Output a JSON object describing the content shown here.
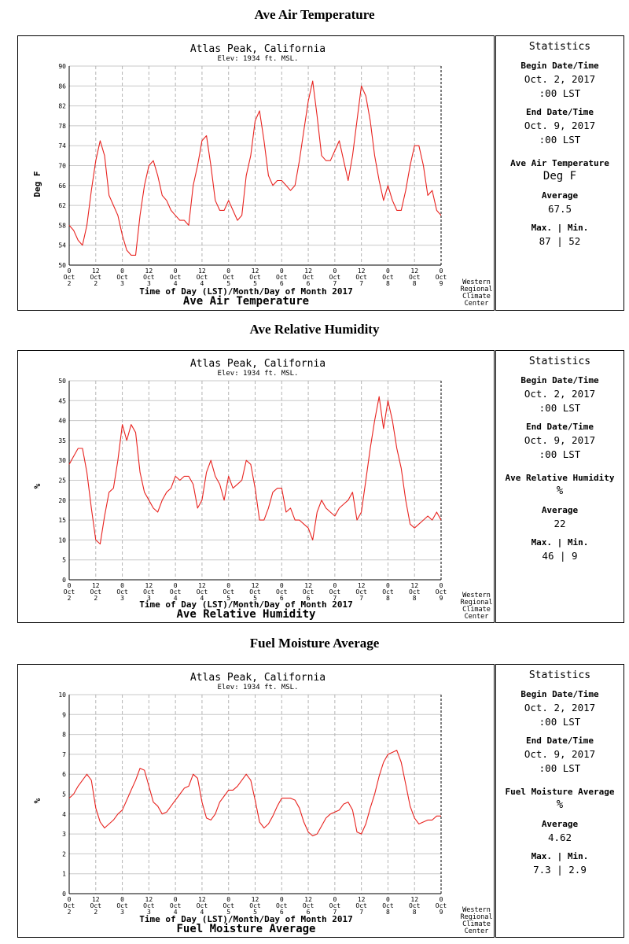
{
  "charts": [
    {
      "section_title": "Ave Air Temperature",
      "station": "Atlas Peak, California",
      "elev": "Elev: 1934 ft. MSL.",
      "ylabel": "Deg F",
      "xlabel": "Time of Day (LST)/Month/Day of Month 2017",
      "subtitle": "Ave Air Temperature",
      "credit": [
        "Western",
        "Regional",
        "Climate",
        "Center"
      ],
      "stats": {
        "heading": "Statistics",
        "begin_label": "Begin Date/Time",
        "begin_date": "Oct. 2, 2017",
        "begin_time": ":00 LST",
        "end_label": "End Date/Time",
        "end_date": "Oct. 9, 2017",
        "end_time": ":00 LST",
        "var_label": "Ave Air Temperature",
        "unit": "Deg F",
        "avg_label": "Average",
        "avg": "67.5",
        "maxmin_label": "Max. | Min.",
        "maxmin": "87 | 52"
      }
    },
    {
      "section_title": "Ave Relative Humidity",
      "station": "Atlas Peak, California",
      "elev": "Elev: 1934 ft. MSL.",
      "ylabel": "%",
      "xlabel": "Time of Day (LST)/Month/Day of Month 2017",
      "subtitle": "Ave Relative Humidity",
      "credit": [
        "Western",
        "Regional",
        "Climate",
        "Center"
      ],
      "stats": {
        "heading": "Statistics",
        "begin_label": "Begin Date/Time",
        "begin_date": "Oct. 2, 2017",
        "begin_time": ":00 LST",
        "end_label": "End Date/Time",
        "end_date": "Oct. 9, 2017",
        "end_time": ":00 LST",
        "var_label": "Ave Relative Humidity",
        "unit": "%",
        "avg_label": "Average",
        "avg": "22",
        "maxmin_label": "Max. | Min.",
        "maxmin": "46 | 9"
      }
    },
    {
      "section_title": "Fuel Moisture Average",
      "station": "Atlas Peak, California",
      "elev": "Elev: 1934 ft. MSL.",
      "ylabel": "%",
      "xlabel": "Time of Day (LST)/Month/Day of Month 2017",
      "subtitle": "Fuel Moisture Average",
      "credit": [
        "Western",
        "Regional",
        "Climate",
        "Center"
      ],
      "stats": {
        "heading": "Statistics",
        "begin_label": "Begin Date/Time",
        "begin_date": "Oct. 2, 2017",
        "begin_time": ":00 LST",
        "end_label": "End Date/Time",
        "end_date": "Oct. 9, 2017",
        "end_time": ":00 LST",
        "var_label": "Fuel Moisture Average",
        "unit": "%",
        "avg_label": "Average",
        "avg": "4.62",
        "maxmin_label": "Max. | Min.",
        "maxmin": "7.3 | 2.9"
      }
    }
  ],
  "chart_data": [
    {
      "type": "line",
      "title": "Ave Air Temperature",
      "xlabel": "Time of Day (LST)/Month/Day of Month 2017",
      "ylabel": "Deg F",
      "ylim": [
        50,
        90
      ],
      "yticks": [
        50,
        54,
        58,
        62,
        66,
        70,
        74,
        78,
        82,
        86,
        90
      ],
      "xlim": [
        "Oct 2 00:00",
        "Oct 9 00:00"
      ],
      "xticks": [
        {
          "hour": "0",
          "mon": "Oct",
          "day": "2"
        },
        {
          "hour": "12",
          "mon": "Oct",
          "day": "2"
        },
        {
          "hour": "0",
          "mon": "Oct",
          "day": "3"
        },
        {
          "hour": "12",
          "mon": "Oct",
          "day": "3"
        },
        {
          "hour": "0",
          "mon": "Oct",
          "day": "4"
        },
        {
          "hour": "12",
          "mon": "Oct",
          "day": "4"
        },
        {
          "hour": "0",
          "mon": "Oct",
          "day": "5"
        },
        {
          "hour": "12",
          "mon": "Oct",
          "day": "5"
        },
        {
          "hour": "0",
          "mon": "Oct",
          "day": "6"
        },
        {
          "hour": "12",
          "mon": "Oct",
          "day": "6"
        },
        {
          "hour": "0",
          "mon": "Oct",
          "day": "7"
        },
        {
          "hour": "12",
          "mon": "Oct",
          "day": "7"
        },
        {
          "hour": "0",
          "mon": "Oct",
          "day": "8"
        },
        {
          "hour": "12",
          "mon": "Oct",
          "day": "8"
        },
        {
          "hour": "0",
          "mon": "Oct",
          "day": "9"
        }
      ],
      "grid": true,
      "line_color": "#e8231f",
      "series": [
        {
          "x": [
            "Oct 2 00:00",
            "Oct 2 02:00",
            "Oct 2 04:00",
            "Oct 2 06:00",
            "Oct 2 08:00",
            "Oct 2 10:00",
            "Oct 2 12:00",
            "Oct 2 14:00",
            "Oct 2 16:00",
            "Oct 2 18:00",
            "Oct 2 20:00",
            "Oct 2 22:00",
            "Oct 3 00:00",
            "Oct 3 02:00",
            "Oct 3 04:00",
            "Oct 3 06:00",
            "Oct 3 08:00",
            "Oct 3 10:00",
            "Oct 3 12:00",
            "Oct 3 14:00",
            "Oct 3 16:00",
            "Oct 3 18:00",
            "Oct 3 20:00",
            "Oct 3 22:00",
            "Oct 4 00:00",
            "Oct 4 02:00",
            "Oct 4 04:00",
            "Oct 4 06:00",
            "Oct 4 08:00",
            "Oct 4 10:00",
            "Oct 4 12:00",
            "Oct 4 14:00",
            "Oct 4 16:00",
            "Oct 4 18:00",
            "Oct 4 20:00",
            "Oct 4 22:00",
            "Oct 5 00:00",
            "Oct 5 02:00",
            "Oct 5 04:00",
            "Oct 5 06:00",
            "Oct 5 08:00",
            "Oct 5 10:00",
            "Oct 5 12:00",
            "Oct 5 14:00",
            "Oct 5 16:00",
            "Oct 5 18:00",
            "Oct 5 20:00",
            "Oct 5 22:00",
            "Oct 6 00:00",
            "Oct 6 02:00",
            "Oct 6 04:00",
            "Oct 6 06:00",
            "Oct 6 08:00",
            "Oct 6 10:00",
            "Oct 6 12:00",
            "Oct 6 14:00",
            "Oct 6 16:00",
            "Oct 6 18:00",
            "Oct 6 20:00",
            "Oct 6 22:00",
            "Oct 7 00:00",
            "Oct 7 02:00",
            "Oct 7 04:00",
            "Oct 7 06:00",
            "Oct 7 08:00",
            "Oct 7 10:00",
            "Oct 7 12:00",
            "Oct 7 14:00",
            "Oct 7 16:00",
            "Oct 7 18:00",
            "Oct 7 20:00",
            "Oct 7 22:00",
            "Oct 8 00:00",
            "Oct 8 02:00",
            "Oct 8 04:00",
            "Oct 8 06:00",
            "Oct 8 08:00",
            "Oct 8 10:00",
            "Oct 8 12:00",
            "Oct 8 14:00",
            "Oct 8 16:00",
            "Oct 8 18:00",
            "Oct 8 20:00",
            "Oct 8 22:00",
            "Oct 9 00:00"
          ],
          "y": [
            58,
            57,
            55,
            54,
            58,
            65,
            71,
            75,
            72,
            64,
            62,
            60,
            56,
            53,
            52,
            52,
            60,
            66,
            70,
            71,
            68,
            64,
            63,
            61,
            60,
            59,
            59,
            58,
            66,
            70,
            75,
            76,
            70,
            63,
            61,
            61,
            63,
            61,
            59,
            60,
            68,
            72,
            79,
            81,
            75,
            68,
            66,
            67,
            67,
            66,
            65,
            66,
            71,
            77,
            83,
            87,
            80,
            72,
            71,
            71,
            73,
            75,
            71,
            67,
            72,
            79,
            86,
            84,
            79,
            72,
            67,
            63,
            66,
            63,
            61,
            61,
            65,
            70,
            74,
            74,
            70,
            64,
            65,
            61,
            60
          ]
        }
      ]
    },
    {
      "type": "line",
      "title": "Ave Relative Humidity",
      "xlabel": "Time of Day (LST)/Month/Day of Month 2017",
      "ylabel": "%",
      "ylim": [
        0,
        50
      ],
      "yticks": [
        0,
        5,
        10,
        15,
        20,
        25,
        30,
        35,
        40,
        45,
        50
      ],
      "xlim": [
        "Oct 2 00:00",
        "Oct 9 00:00"
      ],
      "xticks": [
        {
          "hour": "0",
          "mon": "Oct",
          "day": "2"
        },
        {
          "hour": "12",
          "mon": "Oct",
          "day": "2"
        },
        {
          "hour": "0",
          "mon": "Oct",
          "day": "3"
        },
        {
          "hour": "12",
          "mon": "Oct",
          "day": "3"
        },
        {
          "hour": "0",
          "mon": "Oct",
          "day": "4"
        },
        {
          "hour": "12",
          "mon": "Oct",
          "day": "4"
        },
        {
          "hour": "0",
          "mon": "Oct",
          "day": "5"
        },
        {
          "hour": "12",
          "mon": "Oct",
          "day": "5"
        },
        {
          "hour": "0",
          "mon": "Oct",
          "day": "6"
        },
        {
          "hour": "12",
          "mon": "Oct",
          "day": "6"
        },
        {
          "hour": "0",
          "mon": "Oct",
          "day": "7"
        },
        {
          "hour": "12",
          "mon": "Oct",
          "day": "7"
        },
        {
          "hour": "0",
          "mon": "Oct",
          "day": "8"
        },
        {
          "hour": "12",
          "mon": "Oct",
          "day": "8"
        },
        {
          "hour": "0",
          "mon": "Oct",
          "day": "9"
        }
      ],
      "grid": true,
      "line_color": "#e8231f",
      "series": [
        {
          "x": [
            "Oct 2 00:00",
            "Oct 2 02:00",
            "Oct 2 04:00",
            "Oct 2 06:00",
            "Oct 2 08:00",
            "Oct 2 10:00",
            "Oct 2 12:00",
            "Oct 2 14:00",
            "Oct 2 16:00",
            "Oct 2 18:00",
            "Oct 2 20:00",
            "Oct 2 22:00",
            "Oct 3 00:00",
            "Oct 3 02:00",
            "Oct 3 04:00",
            "Oct 3 06:00",
            "Oct 3 08:00",
            "Oct 3 10:00",
            "Oct 3 12:00",
            "Oct 3 14:00",
            "Oct 3 16:00",
            "Oct 3 18:00",
            "Oct 3 20:00",
            "Oct 3 22:00",
            "Oct 4 00:00",
            "Oct 4 02:00",
            "Oct 4 04:00",
            "Oct 4 06:00",
            "Oct 4 08:00",
            "Oct 4 10:00",
            "Oct 4 12:00",
            "Oct 4 14:00",
            "Oct 4 16:00",
            "Oct 4 18:00",
            "Oct 4 20:00",
            "Oct 4 22:00",
            "Oct 5 00:00",
            "Oct 5 02:00",
            "Oct 5 04:00",
            "Oct 5 06:00",
            "Oct 5 08:00",
            "Oct 5 10:00",
            "Oct 5 12:00",
            "Oct 5 14:00",
            "Oct 5 16:00",
            "Oct 5 18:00",
            "Oct 5 20:00",
            "Oct 5 22:00",
            "Oct 6 00:00",
            "Oct 6 02:00",
            "Oct 6 04:00",
            "Oct 6 06:00",
            "Oct 6 08:00",
            "Oct 6 10:00",
            "Oct 6 12:00",
            "Oct 6 14:00",
            "Oct 6 16:00",
            "Oct 6 18:00",
            "Oct 6 20:00",
            "Oct 6 22:00",
            "Oct 7 00:00",
            "Oct 7 02:00",
            "Oct 7 04:00",
            "Oct 7 06:00",
            "Oct 7 08:00",
            "Oct 7 10:00",
            "Oct 7 12:00",
            "Oct 7 14:00",
            "Oct 7 16:00",
            "Oct 7 18:00",
            "Oct 7 20:00",
            "Oct 7 22:00",
            "Oct 8 00:00",
            "Oct 8 02:00",
            "Oct 8 04:00",
            "Oct 8 06:00",
            "Oct 8 08:00",
            "Oct 8 10:00",
            "Oct 8 12:00",
            "Oct 8 14:00",
            "Oct 8 16:00",
            "Oct 8 18:00",
            "Oct 8 20:00",
            "Oct 8 22:00",
            "Oct 9 00:00"
          ],
          "y": [
            29,
            31,
            33,
            33,
            27,
            18,
            10,
            9,
            16,
            22,
            23,
            30,
            39,
            35,
            39,
            37,
            27,
            22,
            20,
            18,
            17,
            20,
            22,
            23,
            26,
            25,
            26,
            26,
            24,
            18,
            20,
            27,
            30,
            26,
            24,
            20,
            26,
            23,
            24,
            25,
            30,
            29,
            23,
            15,
            15,
            18,
            22,
            23,
            23,
            17,
            18,
            15,
            15,
            14,
            13,
            10,
            17,
            20,
            18,
            17,
            16,
            18,
            19,
            20,
            22,
            15,
            17,
            25,
            33,
            40,
            46,
            38,
            45,
            40,
            33,
            28,
            20,
            14,
            13,
            14,
            15,
            16,
            15,
            17,
            15
          ]
        }
      ]
    },
    {
      "type": "line",
      "title": "Fuel Moisture Average",
      "xlabel": "Time of Day (LST)/Month/Day of Month 2017",
      "ylabel": "%",
      "ylim": [
        0,
        10
      ],
      "yticks": [
        0,
        1,
        2,
        3,
        4,
        5,
        6,
        7,
        8,
        9,
        10
      ],
      "xlim": [
        "Oct 2 00:00",
        "Oct 9 00:00"
      ],
      "xticks": [
        {
          "hour": "0",
          "mon": "Oct",
          "day": "2"
        },
        {
          "hour": "12",
          "mon": "Oct",
          "day": "2"
        },
        {
          "hour": "0",
          "mon": "Oct",
          "day": "3"
        },
        {
          "hour": "12",
          "mon": "Oct",
          "day": "3"
        },
        {
          "hour": "0",
          "mon": "Oct",
          "day": "4"
        },
        {
          "hour": "12",
          "mon": "Oct",
          "day": "4"
        },
        {
          "hour": "0",
          "mon": "Oct",
          "day": "5"
        },
        {
          "hour": "12",
          "mon": "Oct",
          "day": "5"
        },
        {
          "hour": "0",
          "mon": "Oct",
          "day": "6"
        },
        {
          "hour": "12",
          "mon": "Oct",
          "day": "6"
        },
        {
          "hour": "0",
          "mon": "Oct",
          "day": "7"
        },
        {
          "hour": "12",
          "mon": "Oct",
          "day": "7"
        },
        {
          "hour": "0",
          "mon": "Oct",
          "day": "8"
        },
        {
          "hour": "12",
          "mon": "Oct",
          "day": "8"
        },
        {
          "hour": "0",
          "mon": "Oct",
          "day": "9"
        }
      ],
      "grid": true,
      "line_color": "#e8231f",
      "series": [
        {
          "x": [
            "Oct 2 00:00",
            "Oct 2 02:00",
            "Oct 2 04:00",
            "Oct 2 06:00",
            "Oct 2 08:00",
            "Oct 2 10:00",
            "Oct 2 12:00",
            "Oct 2 14:00",
            "Oct 2 16:00",
            "Oct 2 18:00",
            "Oct 2 20:00",
            "Oct 2 22:00",
            "Oct 3 00:00",
            "Oct 3 02:00",
            "Oct 3 04:00",
            "Oct 3 06:00",
            "Oct 3 08:00",
            "Oct 3 10:00",
            "Oct 3 12:00",
            "Oct 3 14:00",
            "Oct 3 16:00",
            "Oct 3 18:00",
            "Oct 3 20:00",
            "Oct 3 22:00",
            "Oct 4 00:00",
            "Oct 4 02:00",
            "Oct 4 04:00",
            "Oct 4 06:00",
            "Oct 4 08:00",
            "Oct 4 10:00",
            "Oct 4 12:00",
            "Oct 4 14:00",
            "Oct 4 16:00",
            "Oct 4 18:00",
            "Oct 4 20:00",
            "Oct 4 22:00",
            "Oct 5 00:00",
            "Oct 5 02:00",
            "Oct 5 04:00",
            "Oct 5 06:00",
            "Oct 5 08:00",
            "Oct 5 10:00",
            "Oct 5 12:00",
            "Oct 5 14:00",
            "Oct 5 16:00",
            "Oct 5 18:00",
            "Oct 5 20:00",
            "Oct 5 22:00",
            "Oct 6 00:00",
            "Oct 6 02:00",
            "Oct 6 04:00",
            "Oct 6 06:00",
            "Oct 6 08:00",
            "Oct 6 10:00",
            "Oct 6 12:00",
            "Oct 6 14:00",
            "Oct 6 16:00",
            "Oct 6 18:00",
            "Oct 6 20:00",
            "Oct 6 22:00",
            "Oct 7 00:00",
            "Oct 7 02:00",
            "Oct 7 04:00",
            "Oct 7 06:00",
            "Oct 7 08:00",
            "Oct 7 10:00",
            "Oct 7 12:00",
            "Oct 7 14:00",
            "Oct 7 16:00",
            "Oct 7 18:00",
            "Oct 7 20:00",
            "Oct 7 22:00",
            "Oct 8 00:00",
            "Oct 8 02:00",
            "Oct 8 04:00",
            "Oct 8 06:00",
            "Oct 8 08:00",
            "Oct 8 10:00",
            "Oct 8 12:00",
            "Oct 8 14:00",
            "Oct 8 16:00",
            "Oct 8 18:00",
            "Oct 8 20:00",
            "Oct 8 22:00",
            "Oct 9 00:00"
          ],
          "y": [
            4.8,
            5.0,
            5.4,
            5.7,
            6.0,
            5.7,
            4.3,
            3.6,
            3.3,
            3.5,
            3.7,
            4.0,
            4.2,
            4.7,
            5.2,
            5.7,
            6.3,
            6.2,
            5.4,
            4.6,
            4.4,
            4.0,
            4.1,
            4.4,
            4.7,
            5.0,
            5.3,
            5.4,
            6.0,
            5.8,
            4.6,
            3.8,
            3.7,
            4.0,
            4.6,
            4.9,
            5.2,
            5.2,
            5.4,
            5.7,
            6.0,
            5.7,
            4.7,
            3.6,
            3.3,
            3.5,
            3.9,
            4.4,
            4.8,
            4.8,
            4.8,
            4.7,
            4.3,
            3.6,
            3.1,
            2.9,
            3.0,
            3.4,
            3.8,
            4.0,
            4.1,
            4.2,
            4.5,
            4.6,
            4.2,
            3.1,
            3.0,
            3.5,
            4.3,
            5.0,
            5.9,
            6.6,
            7.0,
            7.1,
            7.2,
            6.6,
            5.5,
            4.4,
            3.8,
            3.5,
            3.6,
            3.7,
            3.7,
            3.9,
            3.9
          ]
        }
      ]
    }
  ]
}
